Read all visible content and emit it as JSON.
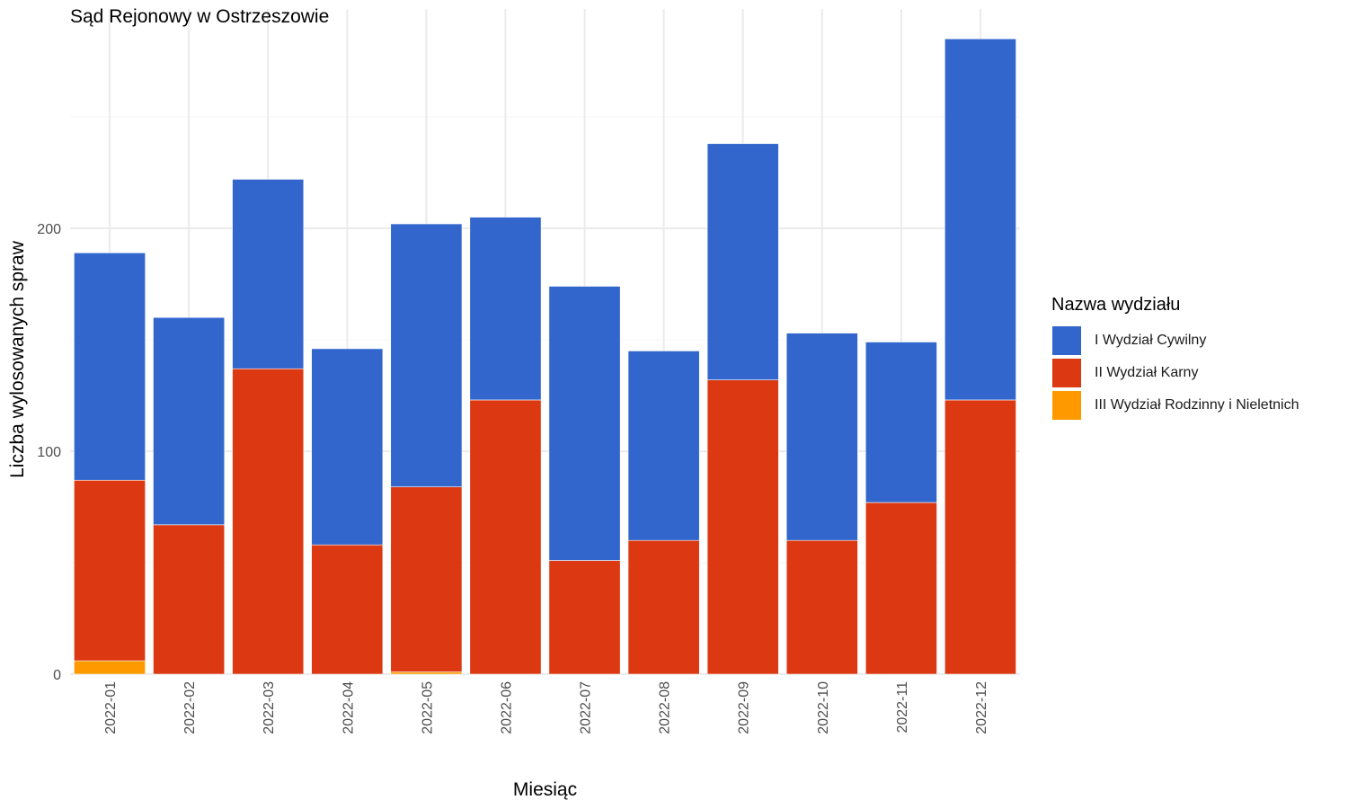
{
  "chart_data": {
    "type": "bar",
    "stacked": true,
    "title": "Sąd Rejonowy w Ostrzeszowie",
    "xlabel": "Miesiąc",
    "ylabel": "Liczba wylosowanych spraw",
    "ylim": [
      0,
      290
    ],
    "yticks": [
      "0",
      "100",
      "200"
    ],
    "grid": true,
    "legend_title": "Nazwa wydziału",
    "legend_position": "right",
    "categories": [
      "2022-01",
      "2022-02",
      "2022-03",
      "2022-04",
      "2022-05",
      "2022-06",
      "2022-07",
      "2022-08",
      "2022-09",
      "2022-10",
      "2022-11",
      "2022-12"
    ],
    "series": [
      {
        "name": "III Wydział Rodzinny i Nieletnich",
        "color": "#FF9900",
        "values": [
          6,
          0,
          0,
          0,
          1,
          0,
          0,
          0,
          0,
          0,
          0,
          0
        ]
      },
      {
        "name": "II Wydział Karny",
        "color": "#DC3912",
        "values": [
          81,
          67,
          137,
          58,
          83,
          123,
          51,
          60,
          132,
          60,
          77,
          123
        ]
      },
      {
        "name": "I Wydział Cywilny",
        "color": "#3366CC",
        "values": [
          102,
          93,
          85,
          88,
          118,
          82,
          123,
          85,
          106,
          93,
          72,
          162
        ]
      }
    ],
    "legend_order": [
      "I Wydział Cywilny",
      "II Wydział Karny",
      "III Wydział Rodzinny i Nieletnich"
    ]
  }
}
